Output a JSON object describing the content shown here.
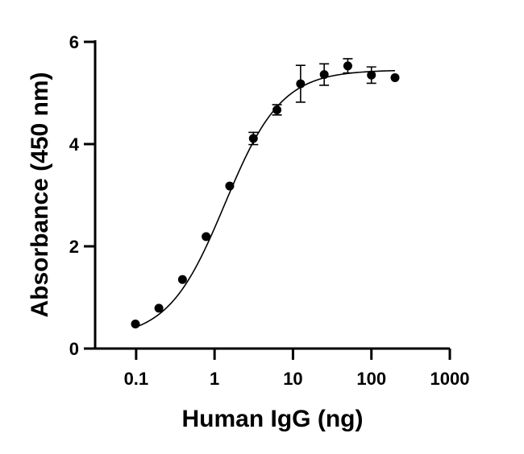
{
  "chart_data": {
    "type": "scatter",
    "xlabel": "Human IgG (ng)",
    "ylabel": "Absorbance (450 nm)",
    "x_scale": "log",
    "xlim": [
      0.03,
      1000
    ],
    "ylim": [
      0,
      6
    ],
    "x_ticks": [
      {
        "value": 0.1,
        "label": "0.1"
      },
      {
        "value": 1,
        "label": "1"
      },
      {
        "value": 10,
        "label": "10"
      },
      {
        "value": 100,
        "label": "100"
      },
      {
        "value": 1000,
        "label": "1000"
      }
    ],
    "y_ticks": [
      {
        "value": 0,
        "label": "0"
      },
      {
        "value": 2,
        "label": "2"
      },
      {
        "value": 4,
        "label": "4"
      },
      {
        "value": 6,
        "label": "6"
      }
    ],
    "grid": false,
    "series": [
      {
        "x": [
          0.098,
          0.195,
          0.39,
          0.78,
          1.56,
          3.125,
          6.25,
          12.5,
          25,
          50,
          100,
          200
        ],
        "y": [
          0.48,
          0.79,
          1.35,
          2.19,
          3.18,
          4.11,
          4.67,
          5.18,
          5.36,
          5.53,
          5.35,
          5.3
        ],
        "error": [
          0.03,
          0.03,
          0.03,
          0.03,
          0.04,
          0.12,
          0.1,
          0.36,
          0.21,
          0.14,
          0.16,
          0.03
        ]
      }
    ],
    "fit_curve": {
      "type": "4PL",
      "bottom": 0.2,
      "top": 5.45,
      "ec50": 1.35,
      "hill": 1.2,
      "x_range": [
        0.098,
        200
      ]
    }
  }
}
